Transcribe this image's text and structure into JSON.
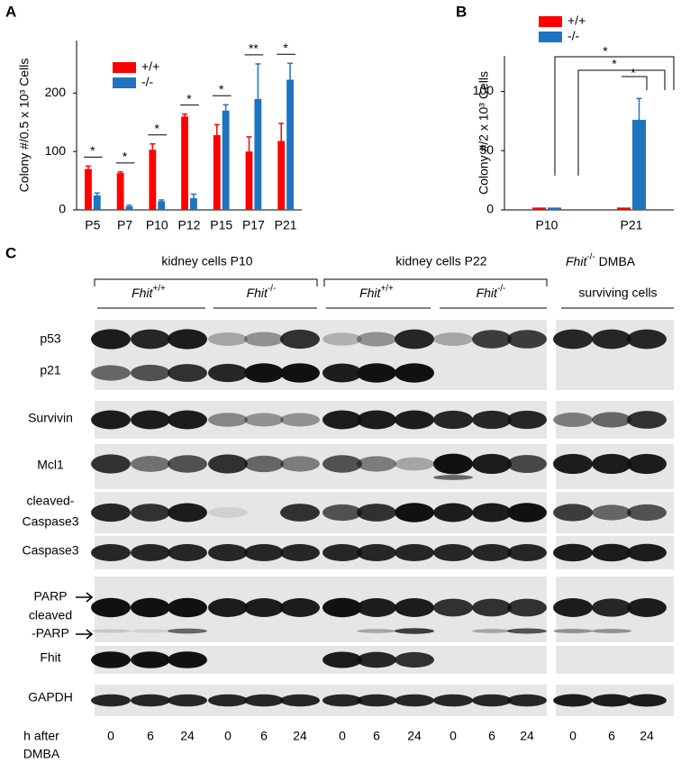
{
  "panels": [
    "A",
    "B",
    "C"
  ],
  "chart_data": [
    {
      "type": "bar",
      "ylabel": "Colony #/0.5 x 10³ Cells",
      "categories": [
        "P5",
        "P7",
        "P10",
        "P12",
        "P15",
        "P17",
        "P21"
      ],
      "series": [
        {
          "name": "+/+",
          "color": "#ff0000",
          "values": [
            70,
            63,
            103,
            160,
            128,
            100,
            118
          ],
          "errors": [
            5,
            2,
            10,
            4,
            18,
            25,
            30
          ]
        },
        {
          "name": "-/-",
          "color": "#1f74c0",
          "values": [
            25,
            6,
            15,
            20,
            170,
            190,
            223
          ],
          "errors": [
            4,
            2,
            2,
            7,
            10,
            60,
            28
          ]
        }
      ],
      "significance": [
        "*",
        "*",
        "*",
        "*",
        "*",
        "**",
        "*"
      ],
      "ylim": [
        0,
        290
      ],
      "yticks": [
        0,
        100,
        200
      ]
    },
    {
      "type": "bar",
      "ylabel": "Colony #/2 x 10³ Cells",
      "categories": [
        "P10",
        "P21"
      ],
      "series": [
        {
          "name": "+/+",
          "color": "#ff0000",
          "values": [
            2,
            2
          ],
          "errors": [
            null,
            null
          ]
        },
        {
          "name": "-/-",
          "color": "#1f74c0",
          "values": [
            2,
            76
          ],
          "errors": [
            null,
            18
          ]
        }
      ],
      "annotations": [
        "*",
        "*",
        "*"
      ],
      "ylim": [
        0,
        130
      ],
      "yticks": [
        0,
        50,
        100
      ]
    }
  ],
  "blot": {
    "groups": [
      "kidney cells  P10",
      "kidney cells  P22"
    ],
    "genotypes": [
      {
        "gene": "Fhit",
        "sup": "+/+"
      },
      {
        "gene": "Fhit",
        "sup": "-/-"
      },
      {
        "gene": "Fhit",
        "sup": "+/+"
      },
      {
        "gene": "Fhit",
        "sup": "-/-"
      }
    ],
    "side_header": {
      "gene": "Fhit",
      "sup": "-/-",
      "text": " DMBA",
      "line2": "surviving cells"
    },
    "rows": [
      [
        "p53"
      ],
      [
        "p21"
      ],
      [
        "Survivin"
      ],
      [
        "Mcl1"
      ],
      [
        "cleaved-",
        "Caspase3"
      ],
      [
        "Caspase3"
      ],
      [
        "PARP"
      ],
      [
        "cleaved",
        "-PARP"
      ],
      [
        "Fhit"
      ],
      [
        "GAPDH"
      ]
    ],
    "time_label": [
      "h after",
      "DMBA"
    ],
    "times": [
      0,
      6,
      24
    ]
  }
}
